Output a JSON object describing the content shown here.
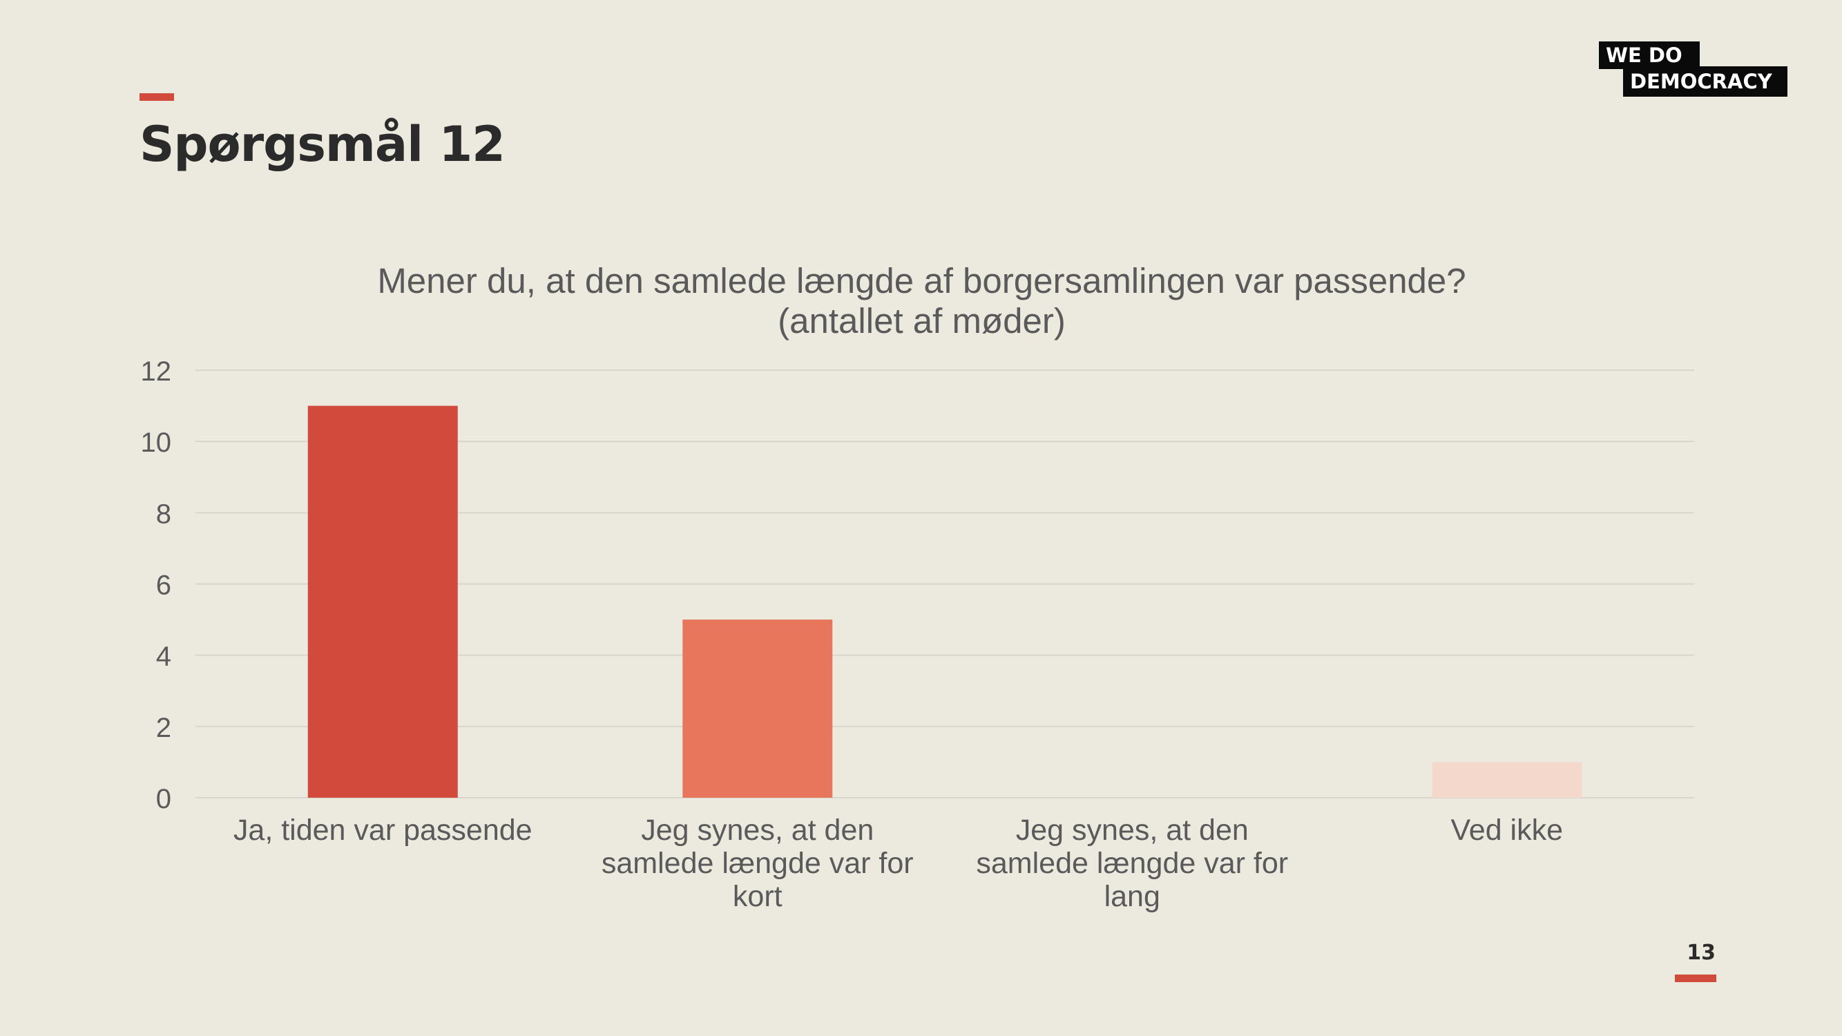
{
  "page": {
    "title": "Spørgsmål 12",
    "page_number": "13"
  },
  "logo": {
    "line1": "WE  DO",
    "line2": "DEMOCRACY"
  },
  "colors": {
    "background": "#ece9df",
    "accent": "#d24a3b",
    "grid": "#d9d6cd",
    "text": "#5a5a5a"
  },
  "chart_data": {
    "type": "bar",
    "title_lines": [
      "Mener du, at den samlede længde af borgersamlingen var passende?",
      "(antallet af møder)"
    ],
    "categories": [
      [
        "Ja, tiden var passende"
      ],
      [
        "Jeg synes, at den",
        "samlede længde var for",
        "kort"
      ],
      [
        "Jeg synes, at den",
        "samlede længde var for",
        "lang"
      ],
      [
        "Ved ikke"
      ]
    ],
    "values": [
      11,
      5,
      0,
      1
    ],
    "bar_colors": [
      "#d24a3b",
      "#e8765c",
      "#f2a08c",
      "#f5d8cc"
    ],
    "ylim": [
      0,
      12
    ],
    "yticks": [
      0,
      2,
      4,
      6,
      8,
      10,
      12
    ],
    "grid": true,
    "legend": false
  }
}
